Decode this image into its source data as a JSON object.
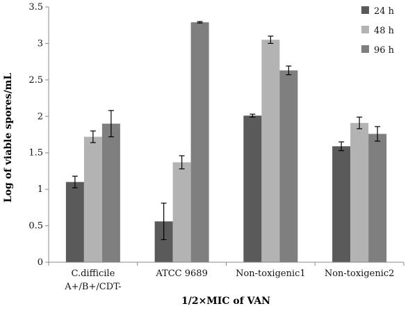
{
  "chart_data": {
    "type": "bar",
    "xlabel": "1/2×MIC of VAN",
    "ylabel": "Log of viable spores/mL",
    "ylim": [
      0,
      3.5
    ],
    "ytick_step": 0.5,
    "grid": false,
    "legend_position": "top-right",
    "categories": [
      [
        "C.difficile",
        "A+/B+/CDT-"
      ],
      [
        "ATCC 9689"
      ],
      [
        "Non-toxigenic1"
      ],
      [
        "Non-toxigenic2"
      ]
    ],
    "series": [
      {
        "name": "24 h",
        "color": "#5a5a5a",
        "values": [
          1.1,
          0.56,
          2.01,
          1.59
        ],
        "errors": [
          0.08,
          0.25,
          0.02,
          0.06
        ]
      },
      {
        "name": "48 h",
        "color": "#b3b3b3",
        "values": [
          1.72,
          1.37,
          3.05,
          1.91
        ],
        "errors": [
          0.08,
          0.09,
          0.05,
          0.08
        ]
      },
      {
        "name": "96 h",
        "color": "#7f7f7f",
        "values": [
          1.9,
          3.29,
          2.63,
          1.76
        ],
        "errors": [
          0.18,
          0.01,
          0.06,
          0.1
        ]
      }
    ]
  }
}
